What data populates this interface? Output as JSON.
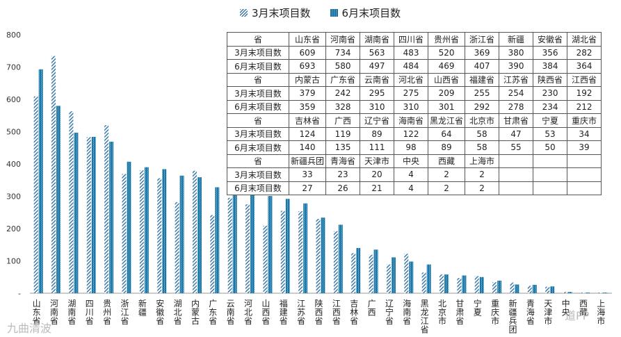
{
  "chart_data": {
    "type": "bar",
    "categories": [
      "山东省",
      "河南省",
      "湖南省",
      "四川省",
      "贵州省",
      "浙江省",
      "新疆",
      "安徽省",
      "湖北省",
      "内蒙古",
      "广东省",
      "云南省",
      "河北省",
      "山西省",
      "福建省",
      "江苏省",
      "陕西省",
      "江西省",
      "吉林省",
      "广西",
      "辽宁省",
      "海南省",
      "黑龙江省",
      "北京市",
      "甘肃省",
      "宁夏",
      "重庆市",
      "新疆兵团",
      "青海省",
      "天津市",
      "中央",
      "西藏",
      "上海市"
    ],
    "series": [
      {
        "name": "3月末项目数",
        "values": [
          609,
          734,
          563,
          483,
          520,
          369,
          380,
          356,
          282,
          379,
          242,
          295,
          275,
          209,
          255,
          254,
          230,
          192,
          124,
          119,
          89,
          122,
          64,
          58,
          47,
          53,
          34,
          33,
          23,
          20,
          4,
          2,
          2
        ]
      },
      {
        "name": "6月末项目数",
        "values": [
          693,
          580,
          497,
          484,
          469,
          407,
          390,
          384,
          364,
          359,
          328,
          310,
          310,
          301,
          292,
          278,
          234,
          212,
          140,
          135,
          111,
          98,
          89,
          58,
          55,
          50,
          39,
          27,
          26,
          21,
          4,
          2,
          2
        ]
      }
    ],
    "ylim": [
      0,
      800
    ],
    "yticks": [
      0,
      100,
      200,
      300,
      400,
      500,
      600,
      700,
      800
    ],
    "ytick_labels": [
      "-",
      "100",
      "200",
      "300",
      "400",
      "500",
      "600",
      "700",
      "800"
    ],
    "xtick_labels": [
      "山\n东\n省",
      "河\n南\n省",
      "湖\n南\n省",
      "四\n川\n省",
      "贵\n州\n省",
      "浙\n江\n省",
      "新\n疆",
      "安\n徽\n省",
      "湖\n北\n省",
      "内\n蒙\n古",
      "广\n东\n省",
      "云\n南\n省",
      "河\n北\n省",
      "山\n西\n省",
      "福\n建\n省",
      "江\n苏\n省",
      "陕\n西\n省",
      "江\n西\n省",
      "吉\n林\n省",
      "广\n西",
      "辽\n宁\n省",
      "海\n南\n省",
      "黑\n龙\n江\n省",
      "北\n京\n市",
      "甘\n肃\n省",
      "宁\n夏",
      "重\n庆\n市",
      "新\n疆\n兵\n团",
      "青\n海\n省",
      "天\n津\n市",
      "中\n央",
      "西\n藏",
      "上\n海\n市"
    ],
    "legend_position": "top-center",
    "grid": false,
    "colors": {
      "series1": "#3d7aa8",
      "series2": "#1f6f9a"
    }
  },
  "legend": {
    "s1": "3月末项目数",
    "s2": "6月末项目数"
  },
  "table": {
    "rows": [
      [
        "省",
        "山东省",
        "河南省",
        "湖南省",
        "四川省",
        "贵州省",
        "浙江省",
        "新疆",
        "安徽省",
        "湖北省"
      ],
      [
        "3月末项目数",
        "609",
        "734",
        "563",
        "483",
        "520",
        "369",
        "380",
        "356",
        "282"
      ],
      [
        "6月末项目数",
        "693",
        "580",
        "497",
        "484",
        "469",
        "407",
        "390",
        "384",
        "364"
      ],
      [
        "省",
        "内蒙古",
        "广东省",
        "云南省",
        "河北省",
        "山西省",
        "福建省",
        "江苏省",
        "陕西省",
        "江西省"
      ],
      [
        "3月末项目数",
        "379",
        "242",
        "295",
        "275",
        "209",
        "255",
        "254",
        "230",
        "192"
      ],
      [
        "6月末项目数",
        "359",
        "328",
        "310",
        "310",
        "301",
        "292",
        "278",
        "234",
        "212"
      ],
      [
        "省",
        "吉林省",
        "广西",
        "辽宁省",
        "海南省",
        "黑龙江省",
        "北京市",
        "甘肃省",
        "宁夏",
        "重庆市"
      ],
      [
        "3月末项目数",
        "124",
        "119",
        "89",
        "122",
        "64",
        "58",
        "47",
        "53",
        "34"
      ],
      [
        "6月末项目数",
        "140",
        "135",
        "111",
        "98",
        "89",
        "58",
        "55",
        "50",
        "39"
      ],
      [
        "省",
        "新疆兵团",
        "青海省",
        "天津市",
        "中央",
        "西藏",
        "上海市",
        "",
        "",
        ""
      ],
      [
        "3月末项目数",
        "33",
        "23",
        "20",
        "4",
        "2",
        "2",
        "",
        "",
        ""
      ],
      [
        "6月末项目数",
        "27",
        "26",
        "21",
        "4",
        "2",
        "2",
        "",
        "",
        ""
      ]
    ]
  },
  "watermarks": {
    "left": "九曲清波",
    "right": "道PP"
  }
}
